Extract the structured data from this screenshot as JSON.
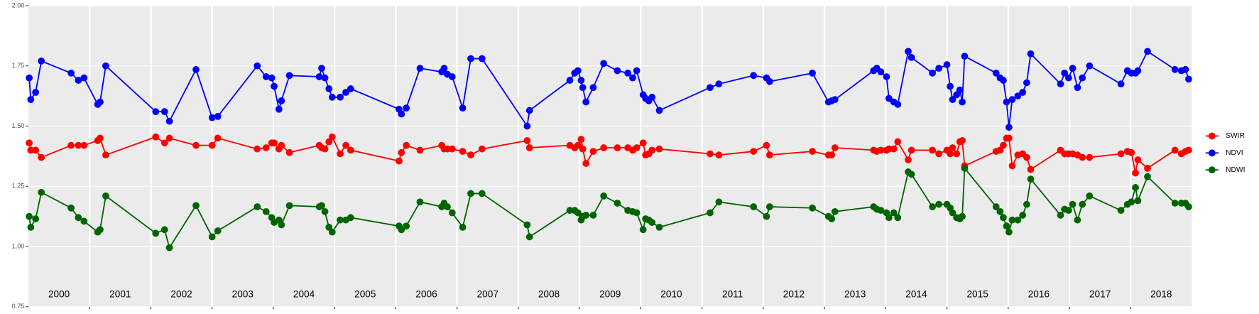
{
  "chart_data": {
    "type": "line",
    "x": [
      2000.013,
      2000.039,
      2000.118,
      2000.211,
      2000.697,
      2000.816,
      2000.908,
      2001.132,
      2001.171,
      2001.263,
      2002.079,
      2002.224,
      2002.303,
      2002.737,
      2003.0,
      2003.092,
      2003.737,
      2003.882,
      2003.974,
      2004.013,
      2004.092,
      2004.132,
      2004.263,
      2004.75,
      2004.789,
      2004.842,
      2004.908,
      2004.961,
      2005.092,
      2005.184,
      2005.263,
      2006.053,
      2006.092,
      2006.171,
      2006.395,
      2006.75,
      2006.789,
      2006.842,
      2006.921,
      2007.092,
      2007.224,
      2007.408,
      2008.145,
      2008.184,
      2008.842,
      2008.921,
      2008.974,
      2009.026,
      2009.053,
      2009.105,
      2009.224,
      2009.395,
      2009.618,
      2009.789,
      2009.868,
      2009.934,
      2010.039,
      2010.079,
      2010.132,
      2010.184,
      2010.303,
      2011.132,
      2011.276,
      2011.842,
      2012.053,
      2012.105,
      2012.803,
      2013.066,
      2013.118,
      2013.171,
      2013.803,
      2013.855,
      2013.921,
      2014.013,
      2014.053,
      2014.132,
      2014.197,
      2014.368,
      2014.421,
      2014.763,
      2014.868,
      2015.0,
      2015.053,
      2015.092,
      2015.158,
      2015.211,
      2015.25,
      2015.289,
      2015.803,
      2015.868,
      2015.921,
      2015.974,
      2016.013,
      2016.066,
      2016.158,
      2016.237,
      2016.303,
      2016.368,
      2016.855,
      2016.921,
      2016.987,
      2017.053,
      2017.132,
      2017.211,
      2017.329,
      2017.842,
      2017.947,
      2018.013,
      2018.079,
      2018.118,
      2018.276,
      2018.724,
      2018.829,
      2018.895,
      2018.947
    ],
    "series": [
      {
        "name": "SWIR",
        "color": "#ff0000",
        "values": [
          1.43,
          1.4,
          1.4,
          1.37,
          1.42,
          1.42,
          1.42,
          1.44,
          1.45,
          1.38,
          1.455,
          1.43,
          1.45,
          1.42,
          1.42,
          1.45,
          1.405,
          1.41,
          1.43,
          1.43,
          1.405,
          1.42,
          1.39,
          1.42,
          1.41,
          1.405,
          1.435,
          1.455,
          1.385,
          1.42,
          1.4,
          1.355,
          1.39,
          1.42,
          1.4,
          1.42,
          1.405,
          1.405,
          1.405,
          1.395,
          1.38,
          1.405,
          1.44,
          1.41,
          1.42,
          1.41,
          1.42,
          1.445,
          1.405,
          1.345,
          1.395,
          1.41,
          1.41,
          1.41,
          1.4,
          1.41,
          1.43,
          1.38,
          1.385,
          1.4,
          1.405,
          1.385,
          1.38,
          1.395,
          1.42,
          1.38,
          1.395,
          1.38,
          1.38,
          1.41,
          1.4,
          1.395,
          1.4,
          1.4,
          1.405,
          1.405,
          1.435,
          1.36,
          1.4,
          1.4,
          1.385,
          1.4,
          1.385,
          1.41,
          1.385,
          1.435,
          1.44,
          1.335,
          1.395,
          1.4,
          1.42,
          1.45,
          1.45,
          1.335,
          1.38,
          1.385,
          1.37,
          1.32,
          1.4,
          1.385,
          1.385,
          1.385,
          1.38,
          1.37,
          1.37,
          1.385,
          1.395,
          1.39,
          1.305,
          1.36,
          1.325,
          1.4,
          1.385,
          1.395,
          1.4
        ]
      },
      {
        "name": "NDVI",
        "color": "#0000ff",
        "values": [
          1.7,
          1.61,
          1.64,
          1.77,
          1.72,
          1.69,
          1.7,
          1.59,
          1.6,
          1.75,
          1.56,
          1.56,
          1.52,
          1.735,
          1.535,
          1.54,
          1.75,
          1.705,
          1.7,
          1.665,
          1.57,
          1.605,
          1.71,
          1.705,
          1.74,
          1.7,
          1.655,
          1.62,
          1.62,
          1.64,
          1.655,
          1.57,
          1.55,
          1.575,
          1.74,
          1.725,
          1.74,
          1.715,
          1.705,
          1.575,
          1.78,
          1.78,
          1.5,
          1.565,
          1.69,
          1.72,
          1.73,
          1.69,
          1.66,
          1.6,
          1.66,
          1.76,
          1.73,
          1.72,
          1.7,
          1.73,
          1.63,
          1.615,
          1.605,
          1.62,
          1.565,
          1.66,
          1.675,
          1.71,
          1.7,
          1.685,
          1.72,
          1.6,
          1.605,
          1.61,
          1.73,
          1.74,
          1.725,
          1.705,
          1.615,
          1.6,
          1.59,
          1.81,
          1.785,
          1.72,
          1.74,
          1.755,
          1.665,
          1.61,
          1.63,
          1.65,
          1.6,
          1.79,
          1.72,
          1.7,
          1.69,
          1.6,
          1.495,
          1.61,
          1.625,
          1.64,
          1.68,
          1.8,
          1.675,
          1.72,
          1.7,
          1.74,
          1.66,
          1.7,
          1.75,
          1.675,
          1.73,
          1.72,
          1.72,
          1.73,
          1.81,
          1.735,
          1.73,
          1.735,
          1.695
        ]
      },
      {
        "name": "NDWI",
        "color": "#006400",
        "values": [
          1.125,
          1.08,
          1.115,
          1.225,
          1.16,
          1.12,
          1.105,
          1.06,
          1.07,
          1.21,
          1.055,
          1.07,
          0.995,
          1.17,
          1.04,
          1.065,
          1.165,
          1.145,
          1.12,
          1.1,
          1.11,
          1.09,
          1.17,
          1.165,
          1.17,
          1.145,
          1.08,
          1.06,
          1.11,
          1.11,
          1.12,
          1.085,
          1.07,
          1.085,
          1.185,
          1.165,
          1.18,
          1.165,
          1.14,
          1.08,
          1.22,
          1.22,
          1.09,
          1.04,
          1.15,
          1.15,
          1.14,
          1.11,
          1.125,
          1.13,
          1.13,
          1.21,
          1.18,
          1.15,
          1.145,
          1.14,
          1.07,
          1.115,
          1.11,
          1.1,
          1.08,
          1.14,
          1.185,
          1.165,
          1.125,
          1.165,
          1.16,
          1.125,
          1.115,
          1.145,
          1.165,
          1.155,
          1.15,
          1.14,
          1.12,
          1.14,
          1.12,
          1.31,
          1.3,
          1.165,
          1.175,
          1.175,
          1.16,
          1.14,
          1.12,
          1.115,
          1.125,
          1.325,
          1.165,
          1.145,
          1.12,
          1.085,
          1.06,
          1.11,
          1.11,
          1.13,
          1.175,
          1.28,
          1.13,
          1.155,
          1.15,
          1.175,
          1.11,
          1.175,
          1.21,
          1.15,
          1.175,
          1.185,
          1.245,
          1.19,
          1.29,
          1.18,
          1.18,
          1.18,
          1.165
        ]
      }
    ],
    "xlim": [
      2000,
      2019
    ],
    "vlines": [
      2001,
      2002,
      2003,
      2004,
      2005,
      2006,
      2007,
      2008,
      2009,
      2010,
      2011,
      2012,
      2013,
      2014,
      2015,
      2016,
      2017,
      2018
    ],
    "ylim": [
      0.75,
      2.0
    ],
    "yticks": [
      {
        "value": 0.75,
        "label": "0.75"
      },
      {
        "value": 1.0,
        "label": "1.00"
      },
      {
        "value": 1.25,
        "label": "1.25"
      },
      {
        "value": 1.5,
        "label": "1.50"
      },
      {
        "value": 1.75,
        "label": "1.75"
      },
      {
        "value": 2.0,
        "label": "2.00"
      }
    ],
    "annotations": [
      {
        "text": "2000",
        "x": 2000.5,
        "y": 0.8
      },
      {
        "text": "2001",
        "x": 2001.5,
        "y": 0.8
      },
      {
        "text": "2002",
        "x": 2002.5,
        "y": 0.8
      },
      {
        "text": "2003",
        "x": 2003.5,
        "y": 0.8
      },
      {
        "text": "2004",
        "x": 2004.5,
        "y": 0.8
      },
      {
        "text": "2005",
        "x": 2005.5,
        "y": 0.8
      },
      {
        "text": "2006",
        "x": 2006.5,
        "y": 0.8
      },
      {
        "text": "2007",
        "x": 2007.5,
        "y": 0.8
      },
      {
        "text": "2008",
        "x": 2008.5,
        "y": 0.8
      },
      {
        "text": "2009",
        "x": 2009.5,
        "y": 0.8
      },
      {
        "text": "2010",
        "x": 2010.5,
        "y": 0.8
      },
      {
        "text": "2011",
        "x": 2011.5,
        "y": 0.8
      },
      {
        "text": "2012",
        "x": 2012.5,
        "y": 0.8
      },
      {
        "text": "2013",
        "x": 2013.5,
        "y": 0.8
      },
      {
        "text": "2014",
        "x": 2014.5,
        "y": 0.8
      },
      {
        "text": "2015",
        "x": 2015.5,
        "y": 0.8
      },
      {
        "text": "2016",
        "x": 2016.5,
        "y": 0.8
      },
      {
        "text": "2017",
        "x": 2017.5,
        "y": 0.8
      },
      {
        "text": "2018",
        "x": 2018.5,
        "y": 0.8
      }
    ],
    "grid": true,
    "legend": "right"
  }
}
